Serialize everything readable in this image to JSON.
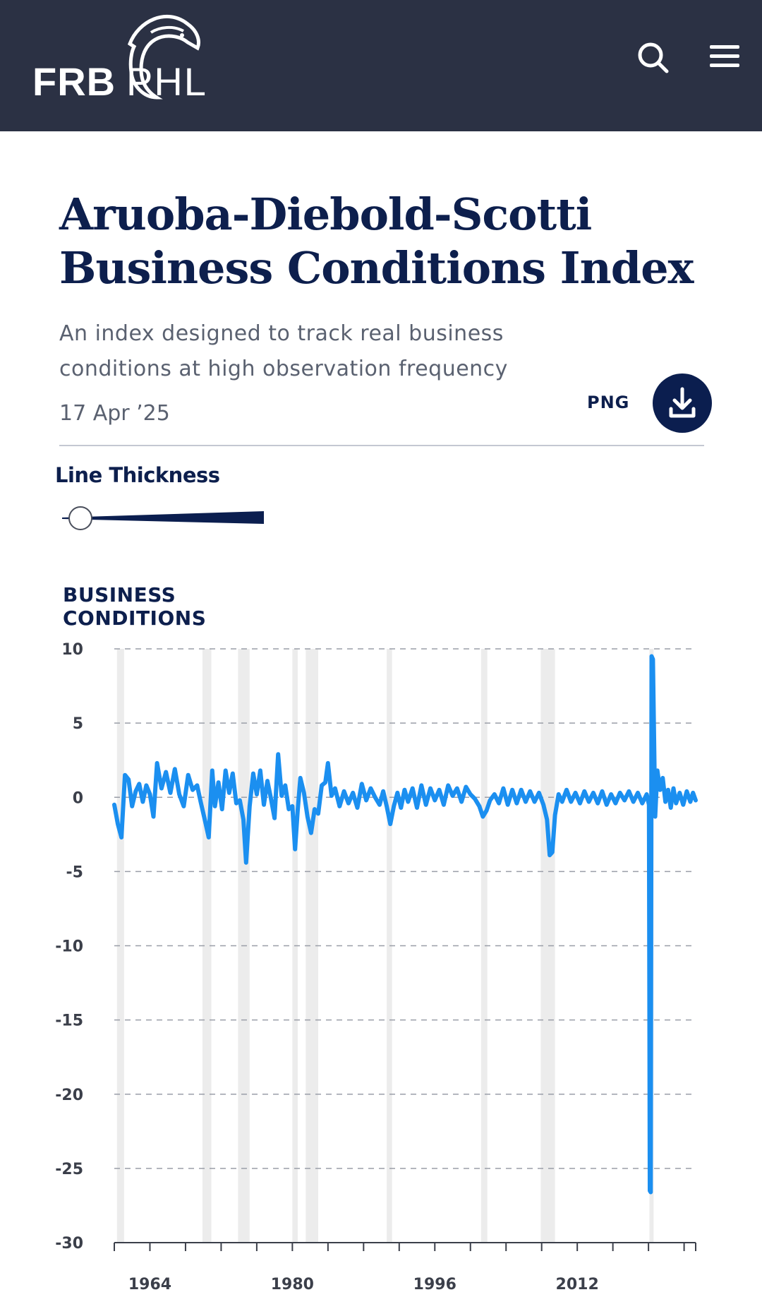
{
  "header": {
    "logo_left": "FRB",
    "logo_right": "PHL",
    "search_icon": "search-icon",
    "menu_icon": "hamburger-menu-icon"
  },
  "page": {
    "title_line1": "Aruoba-Diebold-Scotti",
    "title_line2": "Business Conditions Index",
    "subtitle_line1": "An index designed to track real business",
    "subtitle_line2": "conditions at high observation frequency",
    "date": "17 Apr ’25",
    "png_label": "PNG",
    "download_icon": "download-icon"
  },
  "controls": {
    "line_thickness_label": "Line Thickness",
    "line_thickness_value": 0.0
  },
  "colors": {
    "header_bg": "#2b3144",
    "title": "#0d1f4d",
    "line": "#1b8ff0",
    "recession": "#ececec",
    "button": "#0b1e4f"
  },
  "chart_data": {
    "type": "line",
    "ylabel_line1": "BUSINESS",
    "ylabel_line2": "CONDITIONS",
    "ylim": [
      -30,
      10
    ],
    "yticks": [
      10,
      5,
      0,
      -5,
      -10,
      -15,
      -20,
      -25,
      -30
    ],
    "xlim": [
      1960.0,
      2025.3
    ],
    "xticks": [
      1964,
      1980,
      1996,
      2012
    ],
    "grid": true,
    "recessions": [
      [
        1960.3,
        1961.1
      ],
      [
        1969.9,
        1970.9
      ],
      [
        1973.9,
        1975.2
      ],
      [
        1980.0,
        1980.6
      ],
      [
        1981.5,
        1982.9
      ],
      [
        1990.6,
        1991.2
      ],
      [
        2001.2,
        2001.9
      ],
      [
        2007.9,
        2009.5
      ],
      [
        2020.1,
        2020.4
      ]
    ],
    "series": [
      {
        "points": [
          [
            1960.0,
            -0.5
          ],
          [
            1960.4,
            -1.8
          ],
          [
            1960.8,
            -2.7
          ],
          [
            1961.2,
            1.5
          ],
          [
            1961.6,
            1.2
          ],
          [
            1962.0,
            -0.6
          ],
          [
            1962.4,
            0.4
          ],
          [
            1962.8,
            0.9
          ],
          [
            1963.2,
            -0.3
          ],
          [
            1963.6,
            0.8
          ],
          [
            1964.0,
            0.2
          ],
          [
            1964.4,
            -1.3
          ],
          [
            1964.8,
            2.3
          ],
          [
            1965.3,
            0.6
          ],
          [
            1965.8,
            1.7
          ],
          [
            1966.3,
            0.3
          ],
          [
            1966.8,
            1.9
          ],
          [
            1967.3,
            0.2
          ],
          [
            1967.8,
            -0.6
          ],
          [
            1968.3,
            1.5
          ],
          [
            1968.8,
            0.5
          ],
          [
            1969.3,
            0.8
          ],
          [
            1969.7,
            -0.3
          ],
          [
            1970.2,
            -1.6
          ],
          [
            1970.6,
            -2.7
          ],
          [
            1971.0,
            1.8
          ],
          [
            1971.3,
            -0.6
          ],
          [
            1971.7,
            1.0
          ],
          [
            1972.1,
            -0.8
          ],
          [
            1972.5,
            1.8
          ],
          [
            1972.9,
            0.3
          ],
          [
            1973.3,
            1.6
          ],
          [
            1973.7,
            -0.4
          ],
          [
            1974.1,
            -0.2
          ],
          [
            1974.5,
            -1.5
          ],
          [
            1974.8,
            -4.4
          ],
          [
            1975.2,
            -0.6
          ],
          [
            1975.6,
            1.6
          ],
          [
            1976.0,
            0.2
          ],
          [
            1976.4,
            1.8
          ],
          [
            1976.8,
            -0.5
          ],
          [
            1977.2,
            1.1
          ],
          [
            1977.6,
            -0.1
          ],
          [
            1978.0,
            -1.4
          ],
          [
            1978.4,
            2.9
          ],
          [
            1978.8,
            0.1
          ],
          [
            1979.2,
            0.8
          ],
          [
            1979.6,
            -0.8
          ],
          [
            1980.0,
            -0.6
          ],
          [
            1980.3,
            -3.5
          ],
          [
            1980.6,
            -0.9
          ],
          [
            1980.9,
            1.3
          ],
          [
            1981.3,
            0.3
          ],
          [
            1981.7,
            -1.3
          ],
          [
            1982.1,
            -2.4
          ],
          [
            1982.5,
            -0.8
          ],
          [
            1982.9,
            -1.1
          ],
          [
            1983.3,
            0.8
          ],
          [
            1983.7,
            1.0
          ],
          [
            1984.0,
            2.3
          ],
          [
            1984.4,
            0.1
          ],
          [
            1984.8,
            0.6
          ],
          [
            1985.3,
            -0.6
          ],
          [
            1985.8,
            0.4
          ],
          [
            1986.3,
            -0.4
          ],
          [
            1986.8,
            0.3
          ],
          [
            1987.3,
            -0.7
          ],
          [
            1987.8,
            0.9
          ],
          [
            1988.3,
            -0.2
          ],
          [
            1988.8,
            0.6
          ],
          [
            1989.3,
            0.0
          ],
          [
            1989.8,
            -0.5
          ],
          [
            1990.2,
            0.4
          ],
          [
            1990.6,
            -0.6
          ],
          [
            1991.0,
            -1.8
          ],
          [
            1991.4,
            -0.6
          ],
          [
            1991.8,
            0.3
          ],
          [
            1992.2,
            -0.7
          ],
          [
            1992.6,
            0.5
          ],
          [
            1993.0,
            -0.3
          ],
          [
            1993.5,
            0.6
          ],
          [
            1994.0,
            -0.7
          ],
          [
            1994.5,
            0.8
          ],
          [
            1995.0,
            -0.5
          ],
          [
            1995.5,
            0.6
          ],
          [
            1996.0,
            -0.2
          ],
          [
            1996.5,
            0.5
          ],
          [
            1997.0,
            -0.5
          ],
          [
            1997.5,
            0.8
          ],
          [
            1998.0,
            0.1
          ],
          [
            1998.5,
            0.6
          ],
          [
            1999.0,
            -0.3
          ],
          [
            1999.5,
            0.7
          ],
          [
            2000.0,
            0.2
          ],
          [
            2000.5,
            -0.1
          ],
          [
            2001.0,
            -0.6
          ],
          [
            2001.4,
            -1.3
          ],
          [
            2001.8,
            -0.9
          ],
          [
            2002.2,
            -0.2
          ],
          [
            2002.7,
            0.2
          ],
          [
            2003.2,
            -0.4
          ],
          [
            2003.7,
            0.6
          ],
          [
            2004.2,
            -0.5
          ],
          [
            2004.7,
            0.5
          ],
          [
            2005.2,
            -0.4
          ],
          [
            2005.7,
            0.5
          ],
          [
            2006.2,
            -0.3
          ],
          [
            2006.7,
            0.4
          ],
          [
            2007.2,
            -0.3
          ],
          [
            2007.7,
            0.3
          ],
          [
            2008.2,
            -0.5
          ],
          [
            2008.6,
            -1.5
          ],
          [
            2008.9,
            -3.9
          ],
          [
            2009.2,
            -3.7
          ],
          [
            2009.5,
            -1.2
          ],
          [
            2009.9,
            0.2
          ],
          [
            2010.3,
            -0.3
          ],
          [
            2010.8,
            0.5
          ],
          [
            2011.3,
            -0.3
          ],
          [
            2011.8,
            0.3
          ],
          [
            2012.3,
            -0.4
          ],
          [
            2012.8,
            0.4
          ],
          [
            2013.3,
            -0.3
          ],
          [
            2013.8,
            0.3
          ],
          [
            2014.3,
            -0.4
          ],
          [
            2014.8,
            0.4
          ],
          [
            2015.3,
            -0.5
          ],
          [
            2015.8,
            0.2
          ],
          [
            2016.3,
            -0.4
          ],
          [
            2016.8,
            0.3
          ],
          [
            2017.3,
            -0.2
          ],
          [
            2017.8,
            0.4
          ],
          [
            2018.3,
            -0.3
          ],
          [
            2018.8,
            0.3
          ],
          [
            2019.3,
            -0.4
          ],
          [
            2019.8,
            0.2
          ],
          [
            2020.05,
            -0.5
          ],
          [
            2020.15,
            -26.5
          ],
          [
            2020.25,
            -26.6
          ],
          [
            2020.35,
            9.5
          ],
          [
            2020.5,
            9.3
          ],
          [
            2020.75,
            -1.3
          ],
          [
            2021.0,
            1.8
          ],
          [
            2021.3,
            0.5
          ],
          [
            2021.6,
            1.3
          ],
          [
            2021.9,
            -0.3
          ],
          [
            2022.2,
            0.5
          ],
          [
            2022.5,
            -0.7
          ],
          [
            2022.8,
            0.6
          ],
          [
            2023.1,
            -0.4
          ],
          [
            2023.5,
            0.3
          ],
          [
            2023.9,
            -0.5
          ],
          [
            2024.3,
            0.4
          ],
          [
            2024.7,
            -0.3
          ],
          [
            2025.0,
            0.3
          ],
          [
            2025.3,
            -0.2
          ]
        ]
      }
    ]
  }
}
